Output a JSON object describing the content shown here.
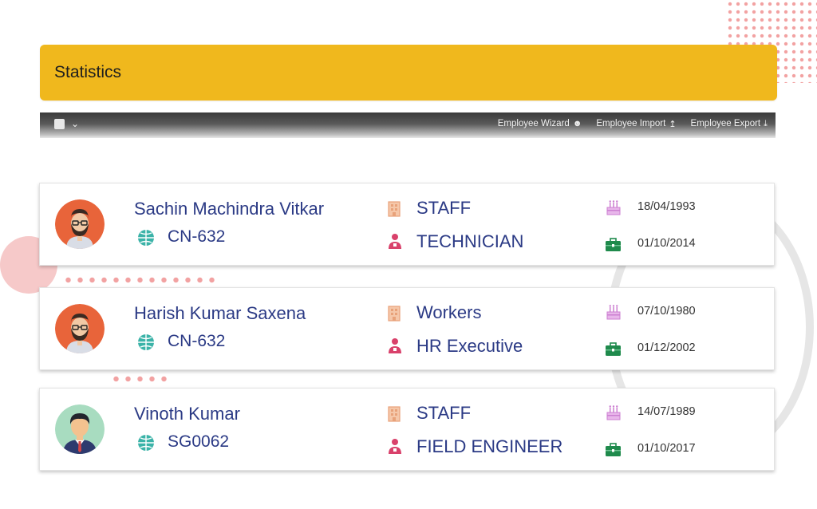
{
  "header": {
    "title": "Statistics"
  },
  "toolbar": {
    "buttons": [
      {
        "label": "Employee Wizard",
        "icon": "user-lock-icon"
      },
      {
        "label": "Employee Import",
        "icon": "import-icon"
      },
      {
        "label": "Employee Export",
        "icon": "download-icon"
      }
    ]
  },
  "employees": [
    {
      "name": "Sachin Machindra Vitkar",
      "code": "CN-632",
      "category": "STAFF",
      "role": "TECHNICIAN",
      "dob": "18/04/1993",
      "doj": "01/10/2014",
      "avatar": "bearded-man-avatar"
    },
    {
      "name": "Harish Kumar Saxena",
      "code": "CN-632",
      "category": "Workers",
      "role": "HR Executive",
      "dob": "07/10/1980",
      "doj": "01/12/2002",
      "avatar": "bearded-man-avatar"
    },
    {
      "name": "Vinoth Kumar",
      "code": "SG0062",
      "category": "STAFF",
      "role": "FIELD ENGINEER",
      "dob": "14/07/1989",
      "doj": "01/10/2017",
      "avatar": "man-in-suit-avatar"
    }
  ],
  "colors": {
    "accent": "#f0b81d",
    "text_primary": "#2b3a85",
    "globe": "#3bb3a8",
    "building": "#e8a27a",
    "person": "#d9416b",
    "cake": "#cc7fd1",
    "briefcase": "#1f8a4c"
  }
}
